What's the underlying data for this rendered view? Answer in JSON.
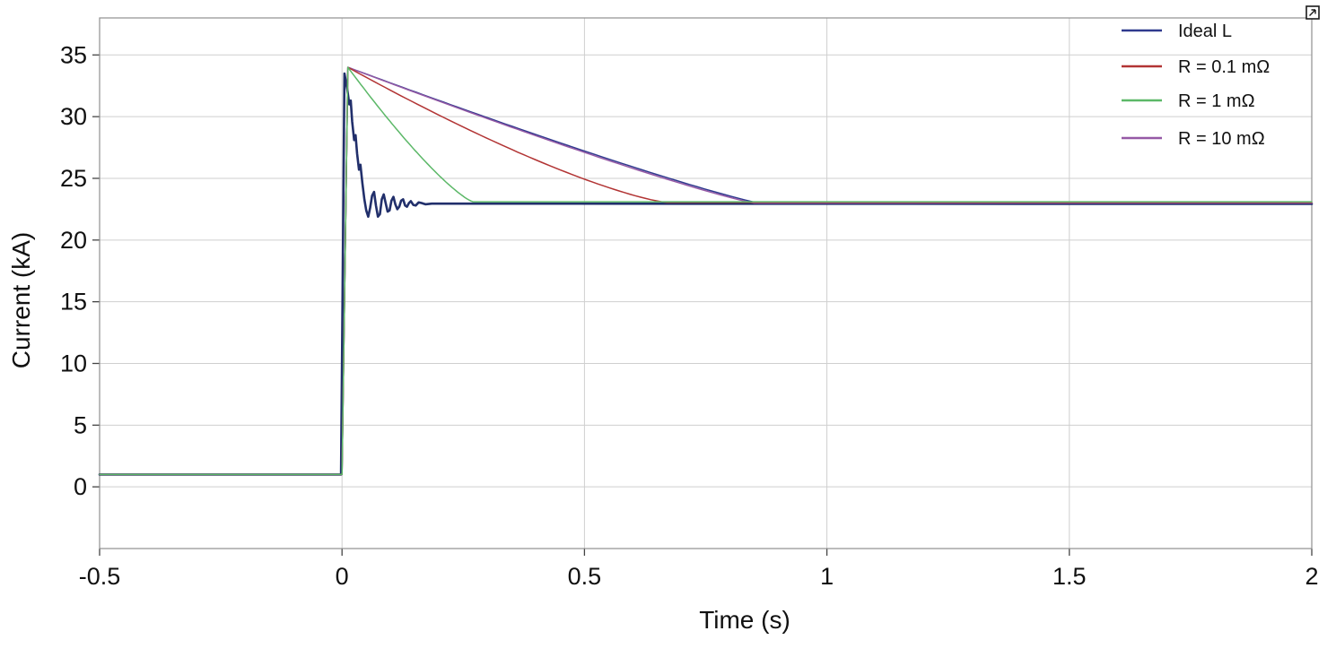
{
  "figure": {
    "background_color": "#ffffff",
    "plot_border_color": "#8f8f8f",
    "gridline_color": "#cfcfcf",
    "tick_color": "#444444",
    "text_color": "#111111"
  },
  "corner_icon": {
    "name": "popout",
    "description": "tiny square button with arrow at top-right corner of plot"
  },
  "chart_data": {
    "type": "line",
    "title": "",
    "xlabel": "Time (s)",
    "ylabel": "Current (kA)",
    "xlim": [
      -0.5,
      2
    ],
    "ylim": [
      -5,
      38
    ],
    "x_ticks": [
      -0.5,
      0,
      0.5,
      1,
      1.5,
      2
    ],
    "x_tick_labels": [
      "-0.5",
      "0",
      "0.5",
      "1",
      "1.5",
      "2"
    ],
    "y_ticks": [
      0,
      5,
      10,
      15,
      20,
      25,
      30,
      35
    ],
    "y_tick_labels": [
      "0",
      "5",
      "10",
      "15",
      "20",
      "25",
      "30",
      "35"
    ],
    "grid": true,
    "legend_position": "top-right-inside-transparent",
    "series": [
      {
        "name": "Ideal L",
        "color": "#2f3a8e",
        "line_width": 1.5,
        "initial_kA": 1.0,
        "peak_kA": 34.0,
        "peak_time_s": 0.012,
        "steady_kA": 23.0,
        "settle_time_s": 0.86,
        "decay_shape_exponent": 1.12
      },
      {
        "name": "R = 0.1 mΩ",
        "color": "#b23434",
        "line_width": 1.5,
        "initial_kA": 1.0,
        "peak_kA": 34.0,
        "peak_time_s": 0.012,
        "steady_kA": 23.05,
        "settle_time_s": 0.67,
        "decay_shape_exponent": 1.3
      },
      {
        "name": "R = 1 mΩ",
        "color": "#5cb868",
        "line_width": 1.5,
        "initial_kA": 1.0,
        "peak_kA": 34.0,
        "peak_time_s": 0.012,
        "steady_kA": 23.1,
        "settle_time_s": 0.27,
        "decay_shape_exponent": 1.25
      },
      {
        "name": "R = 10 mΩ",
        "color": "#9559a5",
        "line_width": 1.5,
        "initial_kA": 1.0,
        "peak_kA": 34.0,
        "peak_time_s": 0.012,
        "steady_kA": 23.0,
        "settle_time_s": 0.85,
        "decay_shape_exponent": 1.13
      }
    ],
    "unlabeled_trace": {
      "description": "thick dark ringing response settling at ~23 kA (no legend entry)",
      "color": "#212f6b",
      "line_width": 2.6,
      "points": [
        [
          -0.5,
          1.0
        ],
        [
          -0.002,
          1.0
        ],
        [
          0.005,
          33.5
        ],
        [
          0.011,
          32.2
        ],
        [
          0.015,
          31.0
        ],
        [
          0.018,
          31.3
        ],
        [
          0.021,
          29.6
        ],
        [
          0.025,
          28.1
        ],
        [
          0.028,
          28.5
        ],
        [
          0.031,
          27.0
        ],
        [
          0.035,
          25.7
        ],
        [
          0.038,
          26.1
        ],
        [
          0.042,
          24.6
        ],
        [
          0.046,
          23.3
        ],
        [
          0.05,
          22.4
        ],
        [
          0.054,
          21.9
        ],
        [
          0.058,
          22.6
        ],
        [
          0.062,
          23.6
        ],
        [
          0.066,
          23.9
        ],
        [
          0.07,
          22.8
        ],
        [
          0.074,
          21.9
        ],
        [
          0.078,
          22.1
        ],
        [
          0.082,
          23.3
        ],
        [
          0.086,
          23.7
        ],
        [
          0.09,
          23.0
        ],
        [
          0.094,
          22.3
        ],
        [
          0.098,
          22.4
        ],
        [
          0.102,
          23.2
        ],
        [
          0.106,
          23.5
        ],
        [
          0.11,
          22.9
        ],
        [
          0.114,
          22.5
        ],
        [
          0.118,
          22.7
        ],
        [
          0.122,
          23.2
        ],
        [
          0.126,
          23.3
        ],
        [
          0.13,
          22.8
        ],
        [
          0.134,
          22.7
        ],
        [
          0.138,
          23.0
        ],
        [
          0.142,
          23.15
        ],
        [
          0.147,
          22.85
        ],
        [
          0.152,
          22.8
        ],
        [
          0.158,
          23.05
        ],
        [
          0.164,
          23.0
        ],
        [
          0.172,
          22.9
        ],
        [
          0.185,
          22.95
        ],
        [
          2.0,
          22.93
        ]
      ]
    },
    "draw_order": [
      "unlabeled_trace",
      0,
      3,
      1,
      2
    ]
  }
}
